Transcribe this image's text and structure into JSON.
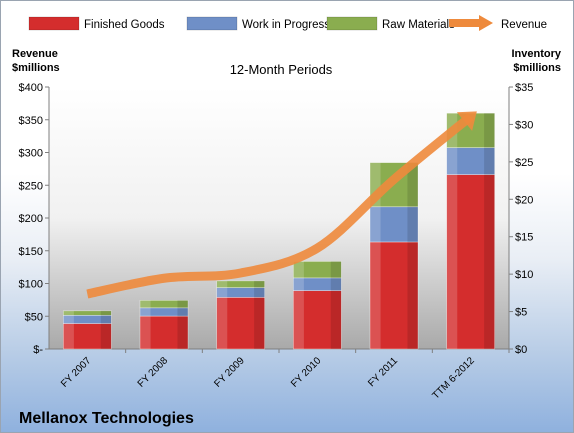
{
  "chart_data": {
    "type": "bar",
    "stacked": true,
    "title": "12-Month Periods",
    "categories": [
      "FY 2007",
      "FY 2008",
      "FY 2009",
      "FY 2010",
      "FY 2011",
      "TTM 6-2012"
    ],
    "series": [
      {
        "name": "Finished Goods",
        "axis": "right",
        "color": "#d42d2d",
        "values": [
          3.4,
          4.4,
          6.9,
          7.8,
          14.3,
          23.3
        ]
      },
      {
        "name": "Work in Progress",
        "axis": "right",
        "color": "#6f8fc7",
        "values": [
          1.1,
          1.1,
          1.3,
          1.7,
          4.7,
          3.6
        ]
      },
      {
        "name": "Raw Materials",
        "axis": "right",
        "color": "#8aad4f",
        "values": [
          0.6,
          1.0,
          0.9,
          2.2,
          5.9,
          4.6
        ]
      }
    ],
    "line_series": [
      {
        "name": "Revenue",
        "axis": "left",
        "color": "#ee8a3c",
        "values": [
          84,
          108,
          116,
          154,
          259,
          355
        ]
      }
    ],
    "left_axis": {
      "label": [
        "Revenue",
        "$millions"
      ],
      "ylim": [
        0,
        400
      ],
      "ticks": [
        0,
        50,
        100,
        150,
        200,
        250,
        300,
        350,
        400
      ],
      "tick_labels": [
        "$-",
        "$50",
        "$100",
        "$150",
        "$200",
        "$250",
        "$300",
        "$350",
        "$400"
      ]
    },
    "right_axis": {
      "label": [
        "Inventory",
        "$millions"
      ],
      "ylim": [
        0,
        35
      ],
      "ticks": [
        0,
        5,
        10,
        15,
        20,
        25,
        30,
        35
      ],
      "tick_labels": [
        "$0",
        "$5",
        "$10",
        "$15",
        "$20",
        "$25",
        "$30",
        "$35"
      ]
    },
    "legend_position": "top",
    "grid": false
  },
  "brand": "Mellanox Technologies"
}
